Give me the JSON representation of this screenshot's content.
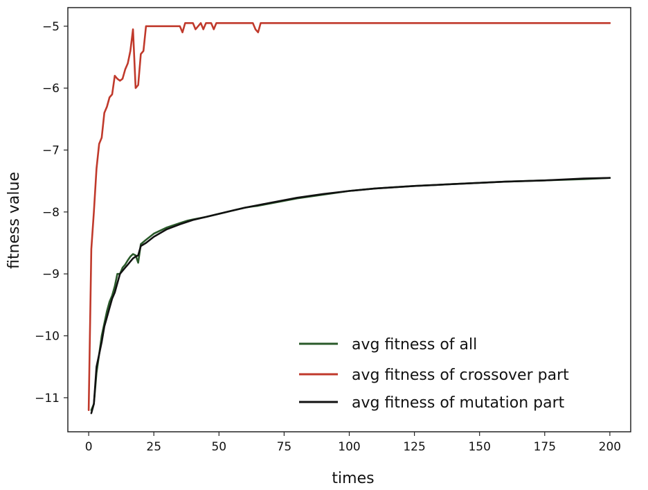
{
  "chart_data": {
    "type": "line",
    "title": "",
    "xlabel": "times",
    "ylabel": "fitness value",
    "xlim": [
      -8,
      208
    ],
    "ylim": [
      -11.55,
      -4.7
    ],
    "xticks": [
      0,
      25,
      50,
      75,
      100,
      125,
      150,
      175,
      200
    ],
    "yticks": [
      -11,
      -10,
      -9,
      -8,
      -7,
      -6,
      -5
    ],
    "xtick_labels": [
      "0",
      "25",
      "50",
      "75",
      "100",
      "125",
      "150",
      "175",
      "200"
    ],
    "ytick_labels": [
      "−11",
      "−10",
      "−9",
      "−8",
      "−7",
      "−6",
      "−5"
    ],
    "grid": false,
    "legend_position": "lower-right",
    "series": [
      {
        "name": "avg fitness of all",
        "color": "#2a5a2a",
        "x": [
          1,
          2,
          3,
          4,
          5,
          6,
          7,
          8,
          9,
          10,
          11,
          12,
          13,
          14,
          15,
          16,
          17,
          18,
          19,
          20,
          22,
          25,
          30,
          35,
          38,
          40,
          45,
          50,
          55,
          60,
          63,
          65,
          70,
          80,
          90,
          100,
          110,
          125,
          140,
          150,
          160,
          175,
          190,
          200
        ],
        "y": [
          -11.2,
          -11.1,
          -10.6,
          -10.3,
          -10.0,
          -9.8,
          -9.6,
          -9.45,
          -9.35,
          -9.2,
          -9.0,
          -9.0,
          -8.9,
          -8.85,
          -8.78,
          -8.72,
          -8.68,
          -8.7,
          -8.82,
          -8.52,
          -8.45,
          -8.35,
          -8.25,
          -8.18,
          -8.14,
          -8.12,
          -8.08,
          -8.03,
          -7.98,
          -7.93,
          -7.91,
          -7.9,
          -7.86,
          -7.78,
          -7.72,
          -7.66,
          -7.62,
          -7.58,
          -7.55,
          -7.53,
          -7.51,
          -7.49,
          -7.47,
          -7.45
        ]
      },
      {
        "name": "avg fitness of crossover part",
        "color": "#c0392b",
        "x": [
          0,
          1,
          2,
          3,
          4,
          5,
          6,
          7,
          8,
          9,
          10,
          11,
          12,
          13,
          14,
          15,
          16,
          17,
          18,
          19,
          20,
          21,
          22,
          23,
          25,
          30,
          35,
          36,
          37,
          40,
          41,
          43,
          44,
          45,
          47,
          48,
          49,
          50,
          55,
          60,
          63,
          64,
          65,
          66,
          70,
          80,
          100,
          150,
          200
        ],
        "y": [
          -11.2,
          -8.6,
          -8.0,
          -7.3,
          -6.9,
          -6.8,
          -6.4,
          -6.3,
          -6.15,
          -6.1,
          -5.8,
          -5.85,
          -5.88,
          -5.85,
          -5.7,
          -5.6,
          -5.4,
          -5.05,
          -6.0,
          -5.95,
          -5.45,
          -5.4,
          -5.0,
          -5.0,
          -5.0,
          -5.0,
          -5.0,
          -5.1,
          -4.95,
          -4.95,
          -5.05,
          -4.95,
          -5.05,
          -4.95,
          -4.95,
          -5.05,
          -4.95,
          -4.95,
          -4.95,
          -4.95,
          -4.95,
          -5.05,
          -5.1,
          -4.95,
          -4.95,
          -4.95,
          -4.95,
          -4.95,
          -4.95
        ]
      },
      {
        "name": "avg fitness of mutation part",
        "color": "#111111",
        "x": [
          1,
          2,
          3,
          4,
          5,
          6,
          7,
          8,
          9,
          10,
          11,
          12,
          13,
          14,
          15,
          16,
          17,
          18,
          19,
          20,
          22,
          25,
          30,
          35,
          40,
          45,
          50,
          55,
          60,
          65,
          70,
          80,
          90,
          100,
          110,
          125,
          140,
          150,
          160,
          175,
          190,
          200
        ],
        "y": [
          -11.25,
          -11.1,
          -10.5,
          -10.3,
          -10.1,
          -9.85,
          -9.7,
          -9.55,
          -9.4,
          -9.3,
          -9.15,
          -9.0,
          -8.95,
          -8.9,
          -8.85,
          -8.8,
          -8.75,
          -8.72,
          -8.7,
          -8.55,
          -8.5,
          -8.4,
          -8.28,
          -8.2,
          -8.13,
          -8.08,
          -8.03,
          -7.98,
          -7.93,
          -7.89,
          -7.85,
          -7.77,
          -7.71,
          -7.66,
          -7.62,
          -7.58,
          -7.55,
          -7.53,
          -7.51,
          -7.49,
          -7.46,
          -7.45
        ]
      }
    ]
  }
}
